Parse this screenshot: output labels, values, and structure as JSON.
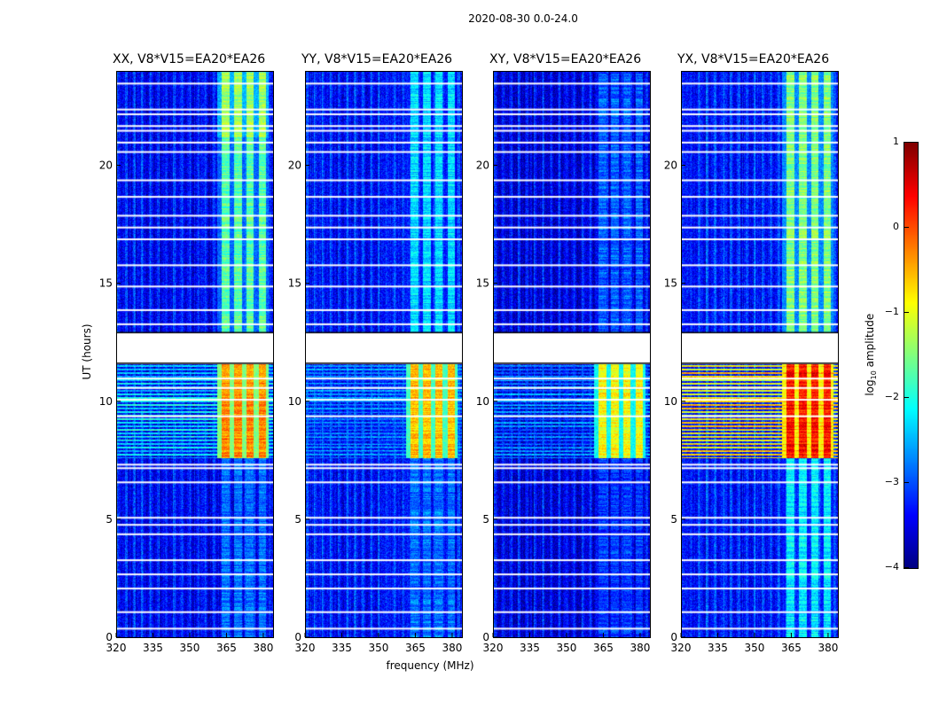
{
  "chart_data": {
    "type": "heatmap",
    "title": "2020-08-30 0.0-24.0",
    "xlabel": "frequency (MHz)",
    "ylabel": "UT (hours)",
    "xlim": [
      320,
      384
    ],
    "ylim": [
      0,
      24
    ],
    "xticks": [
      "320",
      "335",
      "350",
      "365",
      "380"
    ],
    "xtick_values": [
      320,
      335,
      350,
      365,
      380
    ],
    "yticks": [
      "0",
      "5",
      "10",
      "15",
      "20"
    ],
    "ytick_values": [
      0,
      5,
      10,
      15,
      20
    ],
    "colorbar": {
      "label_main": "log",
      "label_sub": "10",
      "label_tail": " amplitude",
      "range": [
        -4,
        1
      ],
      "ticks": [
        "1",
        "0",
        "−1",
        "−2",
        "−3",
        "−4"
      ],
      "tick_values": [
        1,
        0,
        -1,
        -2,
        -3,
        -4
      ],
      "colormap": "jet"
    },
    "flagged_gap_hours": [
      11.6,
      12.9
    ],
    "flagged_lines_hours": [
      0.4,
      1.1,
      2.1,
      2.7,
      3.3,
      4.4,
      4.8,
      5.1,
      6.6,
      7.2,
      7.35,
      9.4,
      10.1,
      10.6,
      11.0,
      13.3,
      13.9,
      14.9,
      15.8,
      16.9,
      17.4,
      17.9,
      18.7,
      19.4,
      20.6,
      21.0,
      21.5,
      21.7,
      22.2,
      22.4,
      23.5
    ],
    "rfi_columns_mhz": [
      [
        363,
        366
      ],
      [
        368,
        371
      ],
      [
        373,
        376
      ],
      [
        378,
        381
      ]
    ],
    "panels": [
      {
        "title": "XX, V8*V15=EA20*EA26",
        "background": -3.5,
        "segments": [
          {
            "hours": [
              0,
              7.6
            ],
            "band": -2.8
          },
          {
            "hours": [
              7.6,
              11.6
            ],
            "band": -0.3,
            "broadband": -2.2
          },
          {
            "hours": [
              12.9,
              21.2
            ],
            "band": -1.7
          },
          {
            "hours": [
              21.2,
              24
            ],
            "band": -1.3
          }
        ]
      },
      {
        "title": "YY, V8*V15=EA20*EA26",
        "background": -3.4,
        "segments": [
          {
            "hours": [
              0,
              7.6
            ],
            "band": -2.8
          },
          {
            "hours": [
              7.6,
              11.6
            ],
            "band": -0.6,
            "broadband": -2.8
          },
          {
            "hours": [
              12.9,
              24
            ],
            "band": -2.3
          }
        ]
      },
      {
        "title": "XY, V8*V15=EA20*EA26",
        "background": -3.6,
        "segments": [
          {
            "hours": [
              0,
              7.6
            ],
            "band": -3.1
          },
          {
            "hours": [
              7.6,
              11.6
            ],
            "band": -0.9,
            "broadband": -2.8
          },
          {
            "hours": [
              12.9,
              24
            ],
            "band": -2.9
          }
        ]
      },
      {
        "title": "YX, V8*V15=EA20*EA26",
        "background": -3.4,
        "segments": [
          {
            "hours": [
              0,
              7.6
            ],
            "band": -2.2
          },
          {
            "hours": [
              7.6,
              11.6
            ],
            "band": 0.3,
            "broadband": -0.8
          },
          {
            "hours": [
              12.9,
              24
            ],
            "band": -1.5
          }
        ]
      }
    ]
  }
}
